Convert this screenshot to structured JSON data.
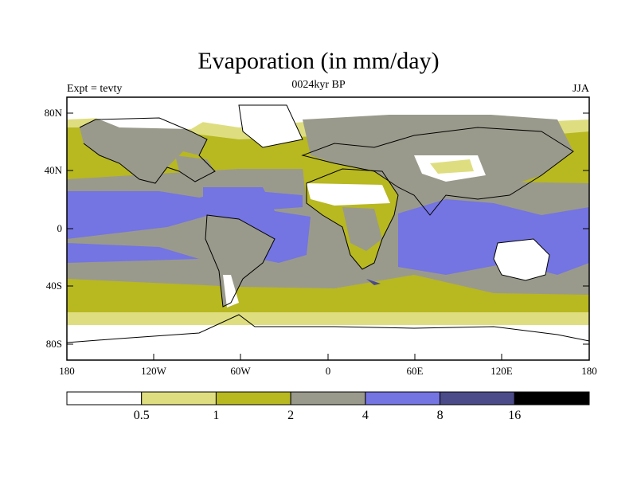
{
  "title": "Evaporation (in mm/day)",
  "subtitle": "0024kyr BP",
  "left_label": "Expt = tevty",
  "right_label": "JJA",
  "map": {
    "lat_ticks": [
      "80N",
      "40N",
      "0",
      "40S",
      "80S"
    ],
    "lon_ticks": [
      "180",
      "120W",
      "60W",
      "0",
      "60E",
      "120E",
      "180"
    ]
  },
  "colorbar": {
    "levels": [
      "0.5",
      "1",
      "2",
      "4",
      "8",
      "16"
    ],
    "colors": [
      "#ffffff",
      "#dede80",
      "#b8b821",
      "#9a9a8c",
      "#7474e2",
      "#4b4b8a",
      "#000000"
    ]
  }
}
